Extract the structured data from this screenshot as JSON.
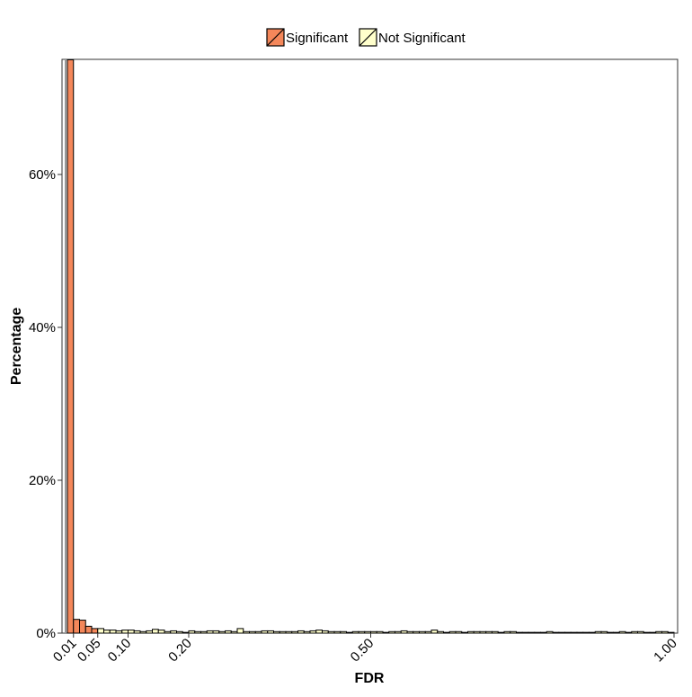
{
  "colors": {
    "significant": "#F4875A",
    "not_significant": "#FFFFCC",
    "bar_stroke": "#000000",
    "zero_line": "#999999",
    "axis": "#333333",
    "text": "#000000"
  },
  "chart_data": {
    "type": "bar",
    "title": "",
    "xlabel": "FDR",
    "ylabel": "Percentage",
    "xlim": [
      0,
      1
    ],
    "ylim": [
      0,
      75
    ],
    "x_ticks": [
      0.01,
      0.05,
      0.1,
      0.2,
      0.5,
      1.0
    ],
    "x_tick_labels": [
      "0.01",
      "0.05",
      "0.10",
      "0.20",
      "0.50",
      "1.00"
    ],
    "y_ticks": [
      0,
      20,
      40,
      60
    ],
    "y_tick_labels": [
      "0%",
      "20%",
      "40%",
      "60%"
    ],
    "bin_width": 0.01,
    "legend": {
      "placement": "top",
      "entries": [
        {
          "name": "Significant",
          "color": "#F4875A"
        },
        {
          "name": "Not Significant",
          "color": "#FFFFCC"
        }
      ]
    },
    "series": [
      {
        "name": "Significant",
        "x": [
          0.005,
          0.015,
          0.025,
          0.035,
          0.045
        ],
        "values": [
          75,
          1.8,
          1.7,
          0.9,
          0.6
        ]
      },
      {
        "name": "Not Significant",
        "x": [
          0.055,
          0.065,
          0.075,
          0.085,
          0.095,
          0.105,
          0.115,
          0.125,
          0.135,
          0.145,
          0.155,
          0.165,
          0.175,
          0.185,
          0.195,
          0.205,
          0.215,
          0.225,
          0.235,
          0.245,
          0.255,
          0.265,
          0.275,
          0.285,
          0.295,
          0.305,
          0.315,
          0.325,
          0.335,
          0.345,
          0.355,
          0.365,
          0.375,
          0.385,
          0.395,
          0.405,
          0.415,
          0.425,
          0.435,
          0.445,
          0.455,
          0.465,
          0.475,
          0.485,
          0.495,
          0.505,
          0.515,
          0.525,
          0.535,
          0.545,
          0.555,
          0.565,
          0.575,
          0.585,
          0.595,
          0.605,
          0.615,
          0.625,
          0.635,
          0.645,
          0.655,
          0.665,
          0.675,
          0.685,
          0.695,
          0.705,
          0.715,
          0.725,
          0.735,
          0.745,
          0.755,
          0.765,
          0.775,
          0.785,
          0.795,
          0.805,
          0.815,
          0.825,
          0.835,
          0.845,
          0.855,
          0.865,
          0.875,
          0.885,
          0.895,
          0.905,
          0.915,
          0.925,
          0.935,
          0.945,
          0.955,
          0.965,
          0.975,
          0.985,
          0.995
        ],
        "values": [
          0.6,
          0.4,
          0.4,
          0.3,
          0.4,
          0.4,
          0.3,
          0.2,
          0.3,
          0.5,
          0.4,
          0.2,
          0.3,
          0.2,
          0.1,
          0.3,
          0.2,
          0.2,
          0.3,
          0.3,
          0.2,
          0.3,
          0.2,
          0.6,
          0.2,
          0.2,
          0.2,
          0.3,
          0.3,
          0.2,
          0.2,
          0.2,
          0.2,
          0.3,
          0.2,
          0.3,
          0.4,
          0.3,
          0.2,
          0.2,
          0.2,
          0.1,
          0.2,
          0.2,
          0.2,
          0.2,
          0.2,
          0.1,
          0.2,
          0.2,
          0.3,
          0.2,
          0.2,
          0.2,
          0.2,
          0.4,
          0.2,
          0.1,
          0.2,
          0.2,
          0.1,
          0.2,
          0.2,
          0.2,
          0.2,
          0.2,
          0.1,
          0.2,
          0.2,
          0.1,
          0.1,
          0.1,
          0.1,
          0.1,
          0.2,
          0.1,
          0.1,
          0.1,
          0.1,
          0.1,
          0.1,
          0.1,
          0.2,
          0.2,
          0.1,
          0.1,
          0.2,
          0.1,
          0.2,
          0.2,
          0.1,
          0.1,
          0.2,
          0.2,
          0.1
        ]
      }
    ]
  }
}
